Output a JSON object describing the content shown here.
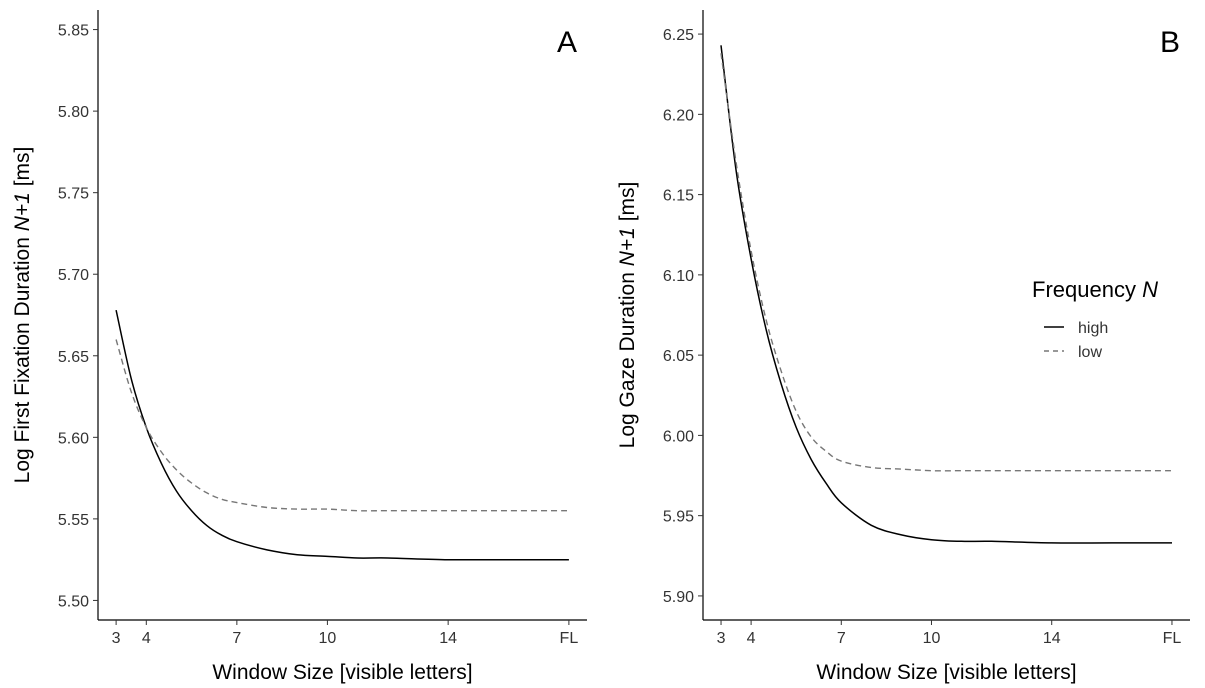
{
  "chart_data": [
    {
      "type": "line",
      "panel_label": "A",
      "xlabel": "Window Size [visible letters]",
      "ylabel_parts": [
        "Log First Fixation Duration ",
        "N+1",
        " [ms]"
      ],
      "x_ticks": [
        3,
        4,
        7,
        10,
        14,
        "FL"
      ],
      "x_tick_positions": [
        3,
        4,
        7,
        10,
        14,
        18
      ],
      "xlim": [
        2.4,
        18.6
      ],
      "ylim": [
        5.488,
        5.862
      ],
      "y_ticks": [
        5.5,
        5.55,
        5.6,
        5.65,
        5.7,
        5.75,
        5.8,
        5.85
      ],
      "y_tick_labels": [
        "5.50",
        "5.55",
        "5.60",
        "5.65",
        "5.70",
        "5.75",
        "5.80",
        "5.85"
      ],
      "series": [
        {
          "name": "high",
          "style": "solid",
          "color": "#000000",
          "x": [
            3,
            3.5,
            4,
            4.5,
            5,
            5.5,
            6,
            6.5,
            7,
            8,
            9,
            10,
            11,
            12,
            14,
            16,
            18
          ],
          "y": [
            5.678,
            5.636,
            5.606,
            5.584,
            5.567,
            5.555,
            5.546,
            5.54,
            5.536,
            5.531,
            5.528,
            5.527,
            5.526,
            5.526,
            5.525,
            5.525,
            5.525
          ]
        },
        {
          "name": "low",
          "style": "dashed",
          "color": "#777777",
          "x": [
            3,
            3.5,
            4,
            4.5,
            5,
            5.5,
            6,
            6.5,
            7,
            8,
            9,
            10,
            11,
            12,
            14,
            16,
            18
          ],
          "y": [
            5.66,
            5.628,
            5.606,
            5.591,
            5.58,
            5.572,
            5.566,
            5.562,
            5.56,
            5.557,
            5.556,
            5.556,
            5.555,
            5.555,
            5.555,
            5.555,
            5.555
          ]
        }
      ]
    },
    {
      "type": "line",
      "panel_label": "B",
      "xlabel": "Window Size [visible letters]",
      "ylabel_parts": [
        "Log Gaze Duration ",
        "N+1",
        " [ms]"
      ],
      "x_ticks": [
        3,
        4,
        7,
        10,
        14,
        "FL"
      ],
      "x_tick_positions": [
        3,
        4,
        7,
        10,
        14,
        18
      ],
      "xlim": [
        2.4,
        18.6
      ],
      "ylim": [
        5.885,
        6.265
      ],
      "y_ticks": [
        5.9,
        5.95,
        6.0,
        6.05,
        6.1,
        6.15,
        6.2,
        6.25
      ],
      "y_tick_labels": [
        "5.90",
        "5.95",
        "6.00",
        "6.05",
        "6.10",
        "6.15",
        "6.20",
        "6.25"
      ],
      "series": [
        {
          "name": "high",
          "style": "solid",
          "color": "#000000",
          "x": [
            3,
            3.5,
            4,
            4.5,
            5,
            5.5,
            6,
            6.5,
            7,
            8,
            9,
            10,
            11,
            12,
            14,
            16,
            18
          ],
          "y": [
            6.243,
            6.165,
            6.11,
            6.066,
            6.032,
            6.005,
            5.985,
            5.97,
            5.958,
            5.944,
            5.938,
            5.935,
            5.934,
            5.934,
            5.933,
            5.933,
            5.933
          ]
        },
        {
          "name": "low",
          "style": "dashed",
          "color": "#777777",
          "x": [
            3,
            3.5,
            4,
            4.5,
            5,
            5.5,
            6,
            6.5,
            7,
            8,
            9,
            10,
            11,
            12,
            14,
            16,
            18
          ],
          "y": [
            6.238,
            6.17,
            6.115,
            6.072,
            6.04,
            6.015,
            5.999,
            5.99,
            5.984,
            5.98,
            5.979,
            5.978,
            5.978,
            5.978,
            5.978,
            5.978,
            5.978
          ]
        }
      ]
    }
  ],
  "legend": {
    "title_parts": [
      "Frequency ",
      "N"
    ],
    "items": [
      {
        "label": "high",
        "style": "solid",
        "color": "#000000"
      },
      {
        "label": "low",
        "style": "dashed",
        "color": "#777777"
      }
    ]
  }
}
